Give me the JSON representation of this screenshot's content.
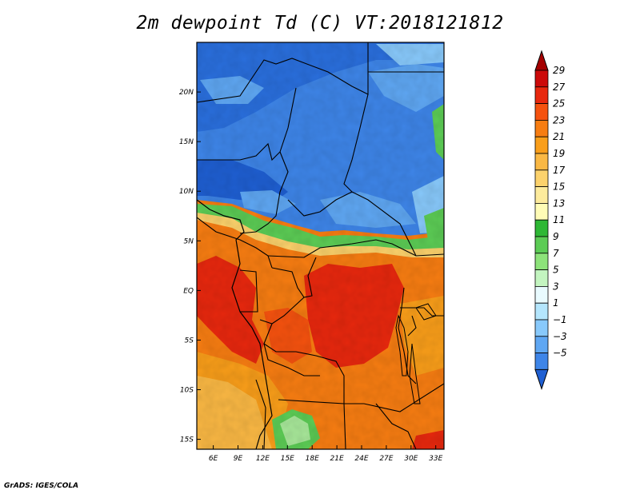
{
  "title": "2m dewpoint Td (C) VT:2018121812",
  "credit": "GrADS: IGES/COLA",
  "map": {
    "lon_range": [
      4,
      34
    ],
    "lat_range": [
      -16,
      25
    ],
    "x_ticks": [
      "6E",
      "9E",
      "12E",
      "15E",
      "18E",
      "21E",
      "24E",
      "27E",
      "30E",
      "33E"
    ],
    "x_tick_values": [
      6,
      9,
      12,
      15,
      18,
      21,
      24,
      27,
      30,
      33
    ],
    "y_ticks": [
      "20N",
      "15N",
      "10N",
      "5N",
      "EQ",
      "5S",
      "10S",
      "15S"
    ],
    "y_tick_values": [
      20,
      15,
      10,
      5,
      0,
      -5,
      -10,
      -15
    ]
  },
  "colorbar": {
    "labels": [
      "29",
      "27",
      "25",
      "23",
      "21",
      "19",
      "17",
      "15",
      "13",
      "11",
      "9",
      "7",
      "5",
      "3",
      "1",
      "−1",
      "−3",
      "−5"
    ],
    "colors": [
      "#a50000",
      "#cc0a0a",
      "#e8280e",
      "#f5520f",
      "#f77d12",
      "#f99e1a",
      "#fab844",
      "#fcd26c",
      "#fdeb9c",
      "#fffcb6",
      "#2eb835",
      "#5ccc55",
      "#8de37a",
      "#c3f5c0",
      "#e9fbff",
      "#b4e6fd",
      "#88c9fb",
      "#5fa7f3",
      "#3e85e8",
      "#1f5fd2"
    ]
  }
}
